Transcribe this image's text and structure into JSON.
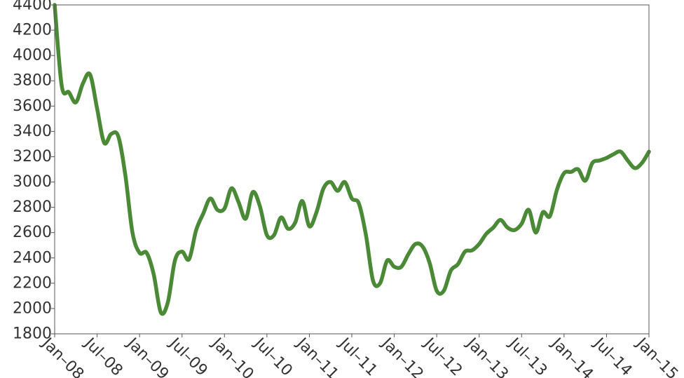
{
  "chart_data": {
    "type": "line",
    "title": "",
    "xlabel": "",
    "ylabel": "",
    "line_color": "#4a8a36",
    "frame_color": "#555555",
    "grid": false,
    "xlim": [
      "2008-01",
      "2015-01"
    ],
    "ylim": [
      1800,
      4400
    ],
    "ytick_values": [
      1800,
      2000,
      2200,
      2400,
      2600,
      2800,
      3000,
      3200,
      3400,
      3600,
      3800,
      4000,
      4200,
      4400
    ],
    "ytick_labels": [
      "1800",
      "2000",
      "2200",
      "2400",
      "2600",
      "2800",
      "3000",
      "3200",
      "3400",
      "3600",
      "3800",
      "4000",
      "4200",
      "4400"
    ],
    "xtick_values": [
      "2008-01",
      "2008-07",
      "2009-01",
      "2009-07",
      "2010-01",
      "2010-07",
      "2011-01",
      "2011-07",
      "2012-01",
      "2012-07",
      "2013-01",
      "2013-07",
      "2014-01",
      "2014-07",
      "2015-01"
    ],
    "xtick_labels": [
      "Jan–08",
      "Jul–08",
      "Jan–09",
      "Jul–09",
      "Jan–10",
      "Jul–10",
      "Jan–11",
      "Jul–11",
      "Jan–12",
      "Jul–12",
      "Jan–13",
      "Jul–13",
      "Jan–14",
      "Jul–14",
      "Jan–15"
    ],
    "series": [
      {
        "x": [
          "2008-01",
          "2008-02",
          "2008-03",
          "2008-04",
          "2008-05",
          "2008-06",
          "2008-07",
          "2008-08",
          "2008-09",
          "2008-10",
          "2008-11",
          "2008-12",
          "2009-01",
          "2009-02",
          "2009-03",
          "2009-04",
          "2009-05",
          "2009-06",
          "2009-07",
          "2009-08",
          "2009-09",
          "2009-10",
          "2009-11",
          "2009-12",
          "2010-01",
          "2010-02",
          "2010-03",
          "2010-04",
          "2010-05",
          "2010-06",
          "2010-07",
          "2010-08",
          "2010-09",
          "2010-10",
          "2010-11",
          "2010-12",
          "2011-01",
          "2011-02",
          "2011-03",
          "2011-04",
          "2011-05",
          "2011-06",
          "2011-07",
          "2011-08",
          "2011-09",
          "2011-10",
          "2011-11",
          "2011-12",
          "2012-01",
          "2012-02",
          "2012-03",
          "2012-04",
          "2012-05",
          "2012-06",
          "2012-07",
          "2012-08",
          "2012-09",
          "2012-10",
          "2012-11",
          "2012-12",
          "2013-01",
          "2013-02",
          "2013-03",
          "2013-04",
          "2013-05",
          "2013-06",
          "2013-07",
          "2013-08",
          "2013-09",
          "2013-10",
          "2013-11",
          "2013-12",
          "2014-01",
          "2014-02",
          "2014-03",
          "2014-04",
          "2014-05",
          "2014-06",
          "2014-07",
          "2014-08",
          "2014-09",
          "2014-10",
          "2014-11",
          "2014-12",
          "2015-01"
        ],
        "values": [
          4400,
          3760,
          3710,
          3630,
          3780,
          3850,
          3580,
          3310,
          3380,
          3360,
          3050,
          2600,
          2440,
          2440,
          2270,
          1970,
          2050,
          2380,
          2450,
          2390,
          2620,
          2750,
          2870,
          2780,
          2790,
          2950,
          2840,
          2710,
          2920,
          2810,
          2580,
          2580,
          2720,
          2630,
          2680,
          2850,
          2650,
          2760,
          2950,
          3000,
          2930,
          3000,
          2870,
          2830,
          2580,
          2220,
          2200,
          2380,
          2330,
          2330,
          2430,
          2510,
          2490,
          2360,
          2140,
          2140,
          2300,
          2350,
          2450,
          2460,
          2510,
          2590,
          2640,
          2700,
          2640,
          2620,
          2670,
          2780,
          2600,
          2760,
          2730,
          2940,
          3070,
          3080,
          3100,
          3010,
          3150,
          3170,
          3190,
          3220,
          3240,
          3170,
          3110,
          3150,
          3240
        ]
      }
    ]
  }
}
